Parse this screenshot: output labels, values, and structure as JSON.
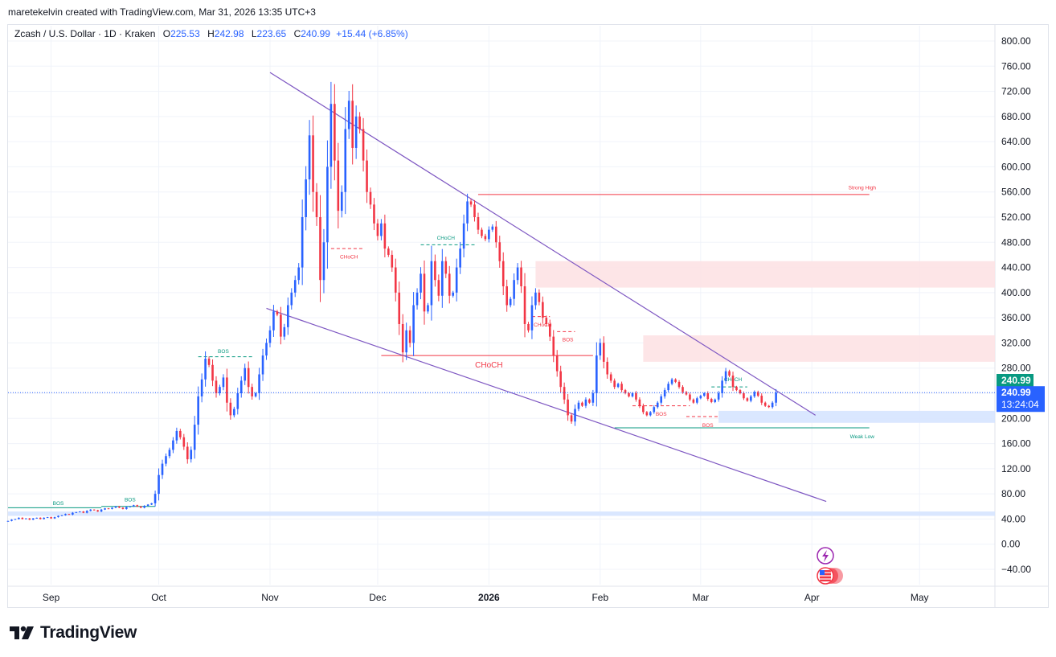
{
  "caption": "maretekelvin created with TradingView.com, Mar 31, 2026 13:35 UTC+3",
  "legend": {
    "symbol": "Zcash / U.S. Dollar · 1D · Kraken",
    "o_label": "O",
    "o_value": "225.53",
    "h_label": "H",
    "h_value": "242.98",
    "l_label": "L",
    "l_value": "223.65",
    "c_label": "C",
    "c_value": "240.99",
    "change": "+15.44 (+6.85%)"
  },
  "brand": "TradingView",
  "colors": {
    "up": "#2962ff",
    "down": "#f23645",
    "trend": "#7e57c2",
    "accent": "#2962ff",
    "supply_zone": "#fde2e4",
    "demand_zone": "#d6e4ff",
    "green": "#089981"
  },
  "chart_data": {
    "type": "candlestick",
    "y_axis": {
      "min": -60,
      "max": 820,
      "ticks": [
        800,
        760,
        720,
        680,
        640,
        600,
        560,
        520,
        480,
        440,
        400,
        360,
        320,
        280,
        240,
        200,
        160,
        120,
        80,
        40,
        0,
        -40
      ],
      "tick_labels": [
        "800.00",
        "760.00",
        "720.00",
        "680.00",
        "640.00",
        "600.00",
        "560.00",
        "520.00",
        "480.00",
        "440.00",
        "400.00",
        "360.00",
        "320.00",
        "280.00",
        "240.00",
        "200.00",
        "160.00",
        "120.00",
        "80.00",
        "40.00",
        "0.00",
        "−40.00"
      ]
    },
    "x_axis": {
      "start": "2025-08-20",
      "end": "2026-05-22",
      "labels": [
        {
          "text": "Sep",
          "date": "2025-09-01",
          "bold": false
        },
        {
          "text": "Oct",
          "date": "2025-10-01",
          "bold": false
        },
        {
          "text": "Nov",
          "date": "2025-11-01",
          "bold": false
        },
        {
          "text": "Dec",
          "date": "2025-12-01",
          "bold": false
        },
        {
          "text": "2026",
          "date": "2026-01-01",
          "bold": true
        },
        {
          "text": "Feb",
          "date": "2026-02-01",
          "bold": false
        },
        {
          "text": "Mar",
          "date": "2026-03-01",
          "bold": false
        },
        {
          "text": "Apr",
          "date": "2026-04-01",
          "bold": false
        },
        {
          "text": "May",
          "date": "2026-05-01",
          "bold": false
        }
      ]
    },
    "candles_start": "2025-08-20",
    "closes": [
      37,
      39,
      40,
      42,
      40,
      41,
      39,
      41,
      42,
      40,
      42,
      43,
      41,
      43,
      45,
      46,
      48,
      47,
      50,
      51,
      52,
      50,
      53,
      55,
      54,
      52,
      55,
      57,
      56,
      58,
      60,
      58,
      56,
      59,
      60,
      62,
      60,
      58,
      61,
      63,
      65,
      80,
      110,
      128,
      140,
      150,
      165,
      180,
      170,
      155,
      135,
      150,
      190,
      235,
      262,
      295,
      285,
      260,
      240,
      250,
      265,
      225,
      205,
      215,
      240,
      260,
      280,
      250,
      235,
      240,
      270,
      300,
      320,
      340,
      370,
      365,
      330,
      345,
      380,
      400,
      420,
      440,
      520,
      580,
      650,
      560,
      520,
      420,
      480,
      600,
      700,
      610,
      530,
      560,
      660,
      705,
      630,
      680,
      660,
      610,
      560,
      540,
      510,
      490,
      510,
      470,
      460,
      440,
      400,
      350,
      305,
      340,
      320,
      380,
      400,
      430,
      370,
      380,
      450,
      420,
      395,
      450,
      430,
      395,
      400,
      440,
      470,
      510,
      545,
      540,
      520,
      500,
      490,
      485,
      500,
      505,
      480,
      450,
      410,
      380,
      390,
      420,
      440,
      410,
      350,
      340,
      380,
      400,
      385,
      360,
      350,
      330,
      300,
      275,
      250,
      230,
      205,
      195,
      215,
      225,
      220,
      230,
      225,
      240,
      300,
      320,
      290,
      270,
      260,
      250,
      255,
      245,
      240,
      235,
      240,
      230,
      220,
      210,
      205,
      210,
      218,
      225,
      235,
      245,
      255,
      262,
      258,
      250,
      242,
      238,
      230,
      225,
      232,
      236,
      240,
      231,
      226,
      230,
      240,
      260,
      275,
      268,
      250,
      245,
      240,
      232,
      228,
      235,
      242,
      236,
      225,
      220,
      218,
      225,
      240.99
    ],
    "swing_high_last": 295,
    "last_price": 240.99,
    "last_price_label": "240.99",
    "countdown": "13:24:04",
    "zones": [
      {
        "name": "supply-zone-upper",
        "from": "2026-01-14",
        "to": "2026-05-22",
        "low": 408,
        "high": 450,
        "kind": "supply"
      },
      {
        "name": "supply-zone-lower",
        "from": "2026-02-13",
        "to": "2026-05-22",
        "low": 290,
        "high": 332,
        "kind": "supply"
      },
      {
        "name": "demand-zone-march",
        "from": "2026-03-06",
        "to": "2026-05-22",
        "low": 193,
        "high": 212,
        "kind": "demand"
      },
      {
        "name": "demand-zone-bottom",
        "from": "2025-08-20",
        "to": "2026-05-22",
        "low": 45,
        "high": 52,
        "kind": "demand"
      }
    ],
    "trendlines": [
      {
        "name": "upper-trendline",
        "from": "2025-11-01",
        "from_v": 750,
        "to": "2026-04-02",
        "to_v": 205
      },
      {
        "name": "lower-trendline",
        "from": "2025-10-31",
        "from_v": 375,
        "to": "2026-04-05",
        "to_v": 68
      }
    ],
    "levels": [
      {
        "name": "strong-high-line",
        "from": "2025-12-29",
        "to": "2026-04-17",
        "v": 556,
        "color": "#f23645",
        "style": "solid",
        "label": "Strong High",
        "label_date": "2026-04-15",
        "label_v": 568
      },
      {
        "name": "choch-main-line",
        "from": "2025-12-02",
        "to": "2026-01-30",
        "v": 300,
        "color": "#f23645",
        "style": "solid",
        "label": "CHoCH",
        "label_date": "2026-01-01",
        "label_v": 285
      },
      {
        "name": "weak-low-line",
        "from": "2026-02-05",
        "to": "2026-04-17",
        "v": 185,
        "color": "#089981",
        "style": "solid",
        "label": "Weak Low",
        "label_date": "2026-04-15",
        "label_v": 172
      },
      {
        "name": "bos-sep-line",
        "from": "2025-08-20",
        "to": "2025-09-15",
        "v": 58,
        "color": "#089981",
        "style": "solid",
        "label": "BOS",
        "label_date": "2025-09-03",
        "label_v": 66
      },
      {
        "name": "bos-sep2-line",
        "from": "2025-09-15",
        "to": "2025-09-30",
        "v": 60,
        "color": "#089981",
        "style": "solid",
        "label": "BOS",
        "label_date": "2025-09-23",
        "label_v": 72
      },
      {
        "name": "bos-oct-line",
        "from": "2025-10-12",
        "to": "2025-10-27",
        "v": 298,
        "color": "#089981",
        "style": "dashed",
        "label": "BOS",
        "label_date": "2025-10-19",
        "label_v": 308
      },
      {
        "name": "choch-nov-line",
        "from": "2025-11-18",
        "to": "2025-11-27",
        "v": 470,
        "color": "#f23645",
        "style": "dashed",
        "label": "CHoCH",
        "label_date": "2025-11-23",
        "label_v": 458
      },
      {
        "name": "choch-dec-line",
        "from": "2025-12-13",
        "to": "2025-12-28",
        "v": 476,
        "color": "#089981",
        "style": "dashed",
        "label": "CHoCH",
        "label_date": "2025-12-20",
        "label_v": 488
      },
      {
        "name": "choch-jan-line",
        "from": "2026-01-13",
        "to": "2026-01-18",
        "v": 362,
        "color": "#f23645",
        "style": "dashed",
        "label": "CHoCH",
        "label_date": "2026-01-16",
        "label_v": 350
      },
      {
        "name": "bos-jan-line",
        "from": "2026-01-20",
        "to": "2026-01-25",
        "v": 338,
        "color": "#f23645",
        "style": "dashed",
        "label": "BOS",
        "label_date": "2026-01-23",
        "label_v": 326
      },
      {
        "name": "bos-feb-line",
        "from": "2026-02-10",
        "to": "2026-02-26",
        "v": 220,
        "color": "#f23645",
        "style": "dashed",
        "label": "BOS",
        "label_date": "2026-02-18",
        "label_v": 208
      },
      {
        "name": "bos-mar-line",
        "from": "2026-02-25",
        "to": "2026-03-06",
        "v": 203,
        "color": "#f23645",
        "style": "dashed",
        "label": "BOS",
        "label_date": "2026-03-03",
        "label_v": 190
      },
      {
        "name": "choch-mar-line",
        "from": "2026-03-04",
        "to": "2026-03-14",
        "v": 250,
        "color": "#089981",
        "style": "dashed",
        "label": "CHoCH",
        "label_date": "2026-03-10",
        "label_v": 263
      }
    ]
  }
}
